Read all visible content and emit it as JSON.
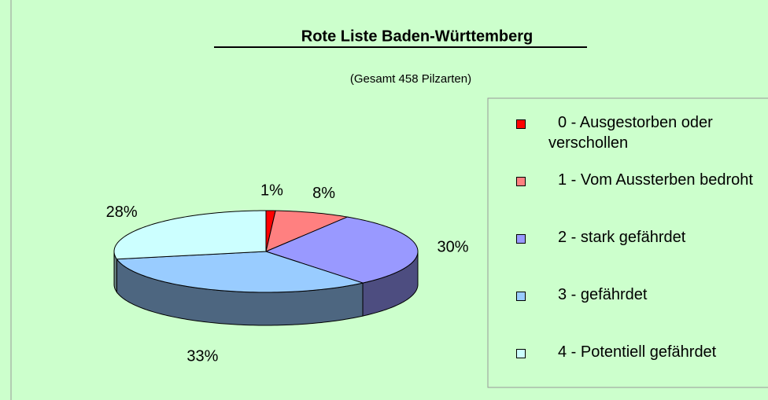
{
  "chart_data": {
    "type": "pie",
    "title": "Rote Liste Baden-Württemberg",
    "subtitle": "(Gesamt 458 Pilzarten)",
    "categories": [
      "0 - Ausgestorben oder verschollen",
      "1 - Vom Aussterben bedroht",
      "2 - stark gefährdet",
      "3 - gefährdet",
      "4 - Potentiell gefährdet"
    ],
    "values": [
      1,
      8,
      30,
      33,
      28
    ],
    "value_labels": [
      "1%",
      "8%",
      "30%",
      "33%",
      "28%"
    ],
    "colors": [
      "#ff0000",
      "#ff8080",
      "#9999ff",
      "#99ccff",
      "#ccffff"
    ],
    "legend": "right"
  }
}
